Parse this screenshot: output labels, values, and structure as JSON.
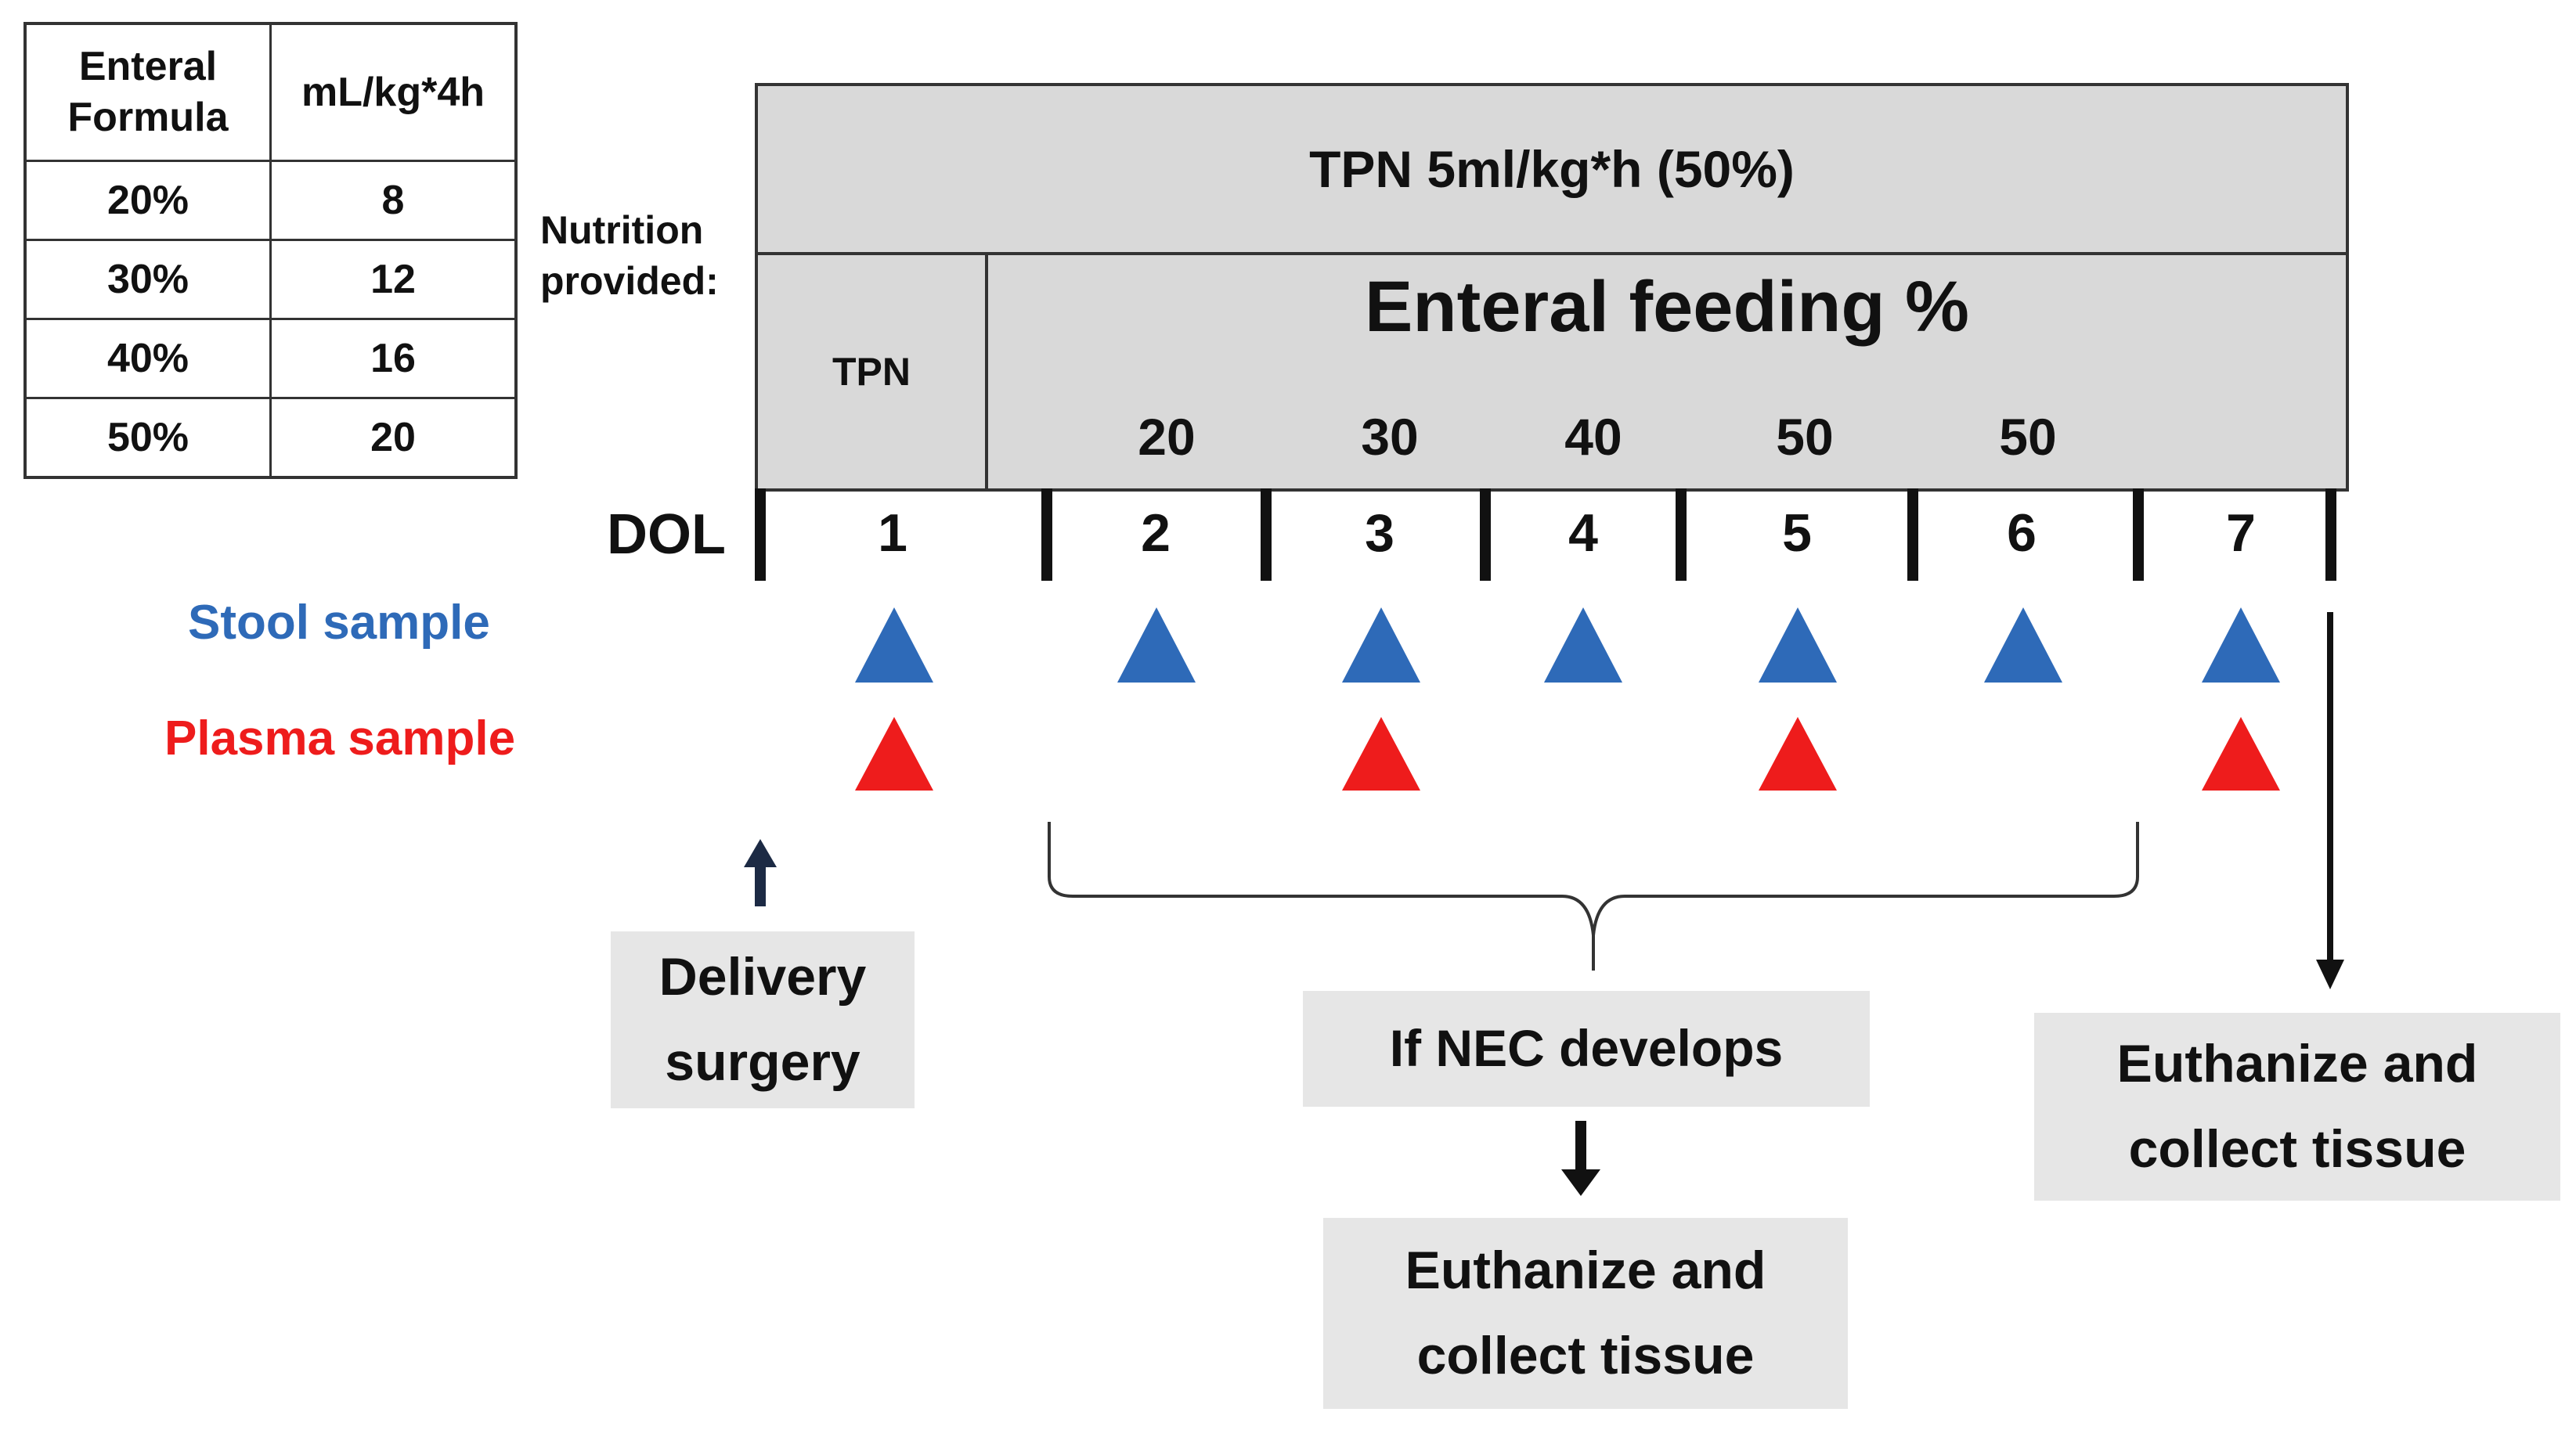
{
  "formula_table": {
    "headers": [
      "Enteral Formula",
      "mL/kg*4h"
    ],
    "rows": [
      [
        "20%",
        "8"
      ],
      [
        "30%",
        "12"
      ],
      [
        "40%",
        "16"
      ],
      [
        "50%",
        "20"
      ]
    ]
  },
  "nutrition_label": "Nutrition provided:",
  "tpn_band": "TPN 5ml/kg*h (50%)",
  "tpn_cell": "TPN",
  "enteral_title": "Enteral feeding %",
  "enteral_percents": [
    "20",
    "30",
    "40",
    "50",
    "50"
  ],
  "dol_label": "DOL",
  "days": [
    "1",
    "2",
    "3",
    "4",
    "5",
    "6",
    "7"
  ],
  "stool_label": "Stool sample",
  "plasma_label": "Plasma sample",
  "stool_days": [
    "1",
    "2",
    "3",
    "4",
    "5",
    "6",
    "7"
  ],
  "plasma_days": [
    "1",
    "3",
    "5",
    "7"
  ],
  "delivery_box": "Delivery surgery",
  "nec_box": "If NEC develops",
  "euthanize_nec_box": "Euthanize and collect tissue",
  "euthanize_end_box": "Euthanize and collect tissue",
  "colors": {
    "stool": "#2e6ab8",
    "plasma": "#ee1c1c",
    "band": "#d9d9d9",
    "callout": "#e6e6e6",
    "stool_label": "#2e6ab8",
    "plasma_label": "#ee1c1c"
  }
}
